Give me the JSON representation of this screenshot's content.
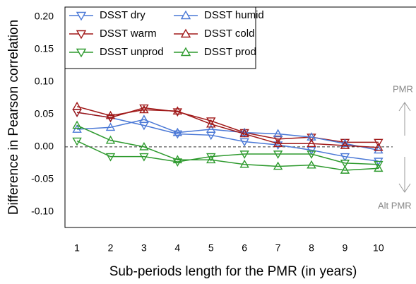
{
  "chart_data": {
    "type": "line",
    "x_label": "Sub-periods length for the PMR (in years)",
    "y_label": "Difference in Pearson correlation",
    "x": [
      1,
      2,
      3,
      4,
      5,
      6,
      7,
      8,
      9,
      10
    ],
    "xlim": [
      0.64,
      11.1
    ],
    "xticks": [
      1,
      2,
      3,
      4,
      5,
      6,
      7,
      8,
      9,
      10
    ],
    "ylim": [
      -0.124,
      0.215
    ],
    "yticks": [
      {
        "value": 0.2,
        "label": "0.20"
      },
      0.15,
      {
        "value": 0.1,
        "label": "0.10"
      },
      0.05,
      {
        "value": 0,
        "label": "0.00"
      },
      -0.05,
      {
        "value": -0.1,
        "label": "-0.10"
      }
    ],
    "reference_line": 0,
    "grid": false,
    "legend": "top-left",
    "annotations": [
      "PMR",
      "Alt PMR"
    ],
    "series": [
      {
        "name": "DSST dry",
        "color": "#4a78d6",
        "marker": "triangle-down",
        "values": [
          0.053,
          0.045,
          0.033,
          0.02,
          0.018,
          0.008,
          0.003,
          -0.005,
          -0.015,
          -0.022
        ]
      },
      {
        "name": "DSST warm",
        "color": "#a01818",
        "marker": "triangle-down",
        "values": [
          0.053,
          0.045,
          0.06,
          0.054,
          0.04,
          0.022,
          0.012,
          0.015,
          0.007,
          0.007
        ]
      },
      {
        "name": "DSST unprod",
        "color": "#2e9a2e",
        "marker": "triangle-down",
        "values": [
          0.009,
          -0.015,
          -0.015,
          -0.023,
          -0.015,
          -0.011,
          -0.011,
          -0.011,
          -0.025,
          -0.027
        ]
      },
      {
        "name": "DSST humid",
        "color": "#4a78d6",
        "marker": "triangle-up",
        "values": [
          0.027,
          0.03,
          0.042,
          0.022,
          0.027,
          0.022,
          0.02,
          0.015,
          0.005,
          -0.005
        ]
      },
      {
        "name": "DSST cold",
        "color": "#a01818",
        "marker": "triangle-up",
        "values": [
          0.062,
          0.048,
          0.057,
          0.055,
          0.035,
          0.02,
          0.005,
          0.005,
          0.002,
          -0.001
        ]
      },
      {
        "name": "DSST prod",
        "color": "#2e9a2e",
        "marker": "triangle-up",
        "values": [
          0.033,
          0.01,
          0.0,
          -0.02,
          -0.02,
          -0.027,
          -0.03,
          -0.028,
          -0.036,
          -0.033
        ]
      }
    ]
  }
}
